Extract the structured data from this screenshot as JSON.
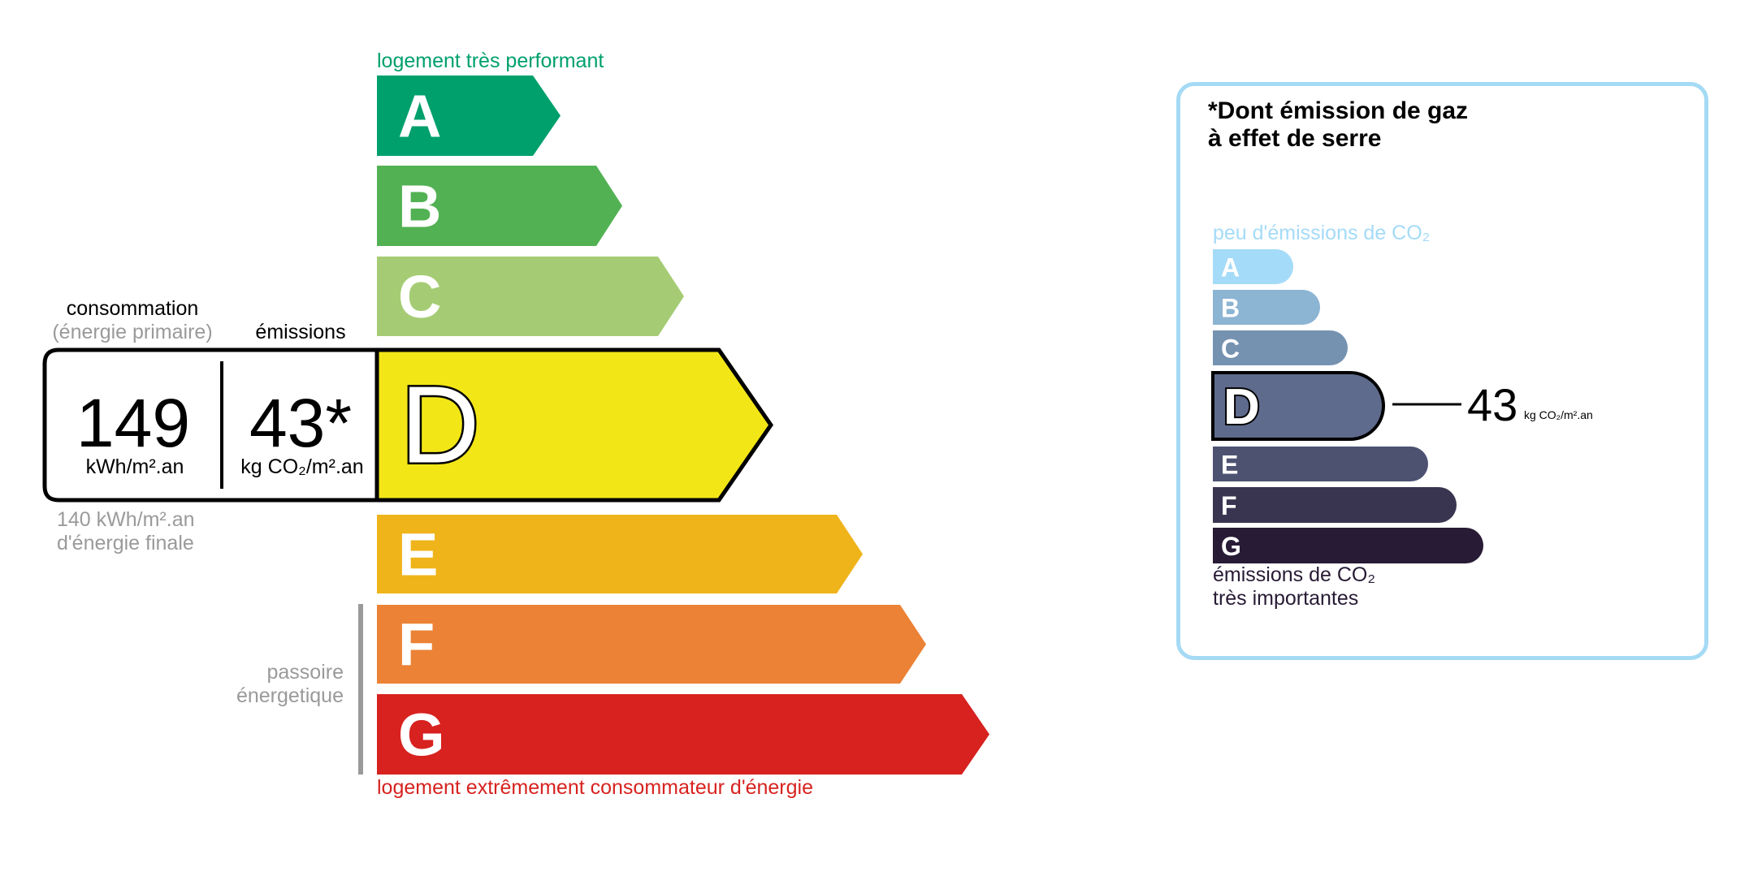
{
  "energy": {
    "top_label": "logement très performant",
    "bottom_label": "logement extrêmement consommateur d'énergie",
    "top_label_color": "#00a06d",
    "bottom_label_color": "#d7221f",
    "classes": [
      {
        "letter": "A",
        "color": "#00a06d"
      },
      {
        "letter": "B",
        "color": "#52b153"
      },
      {
        "letter": "C",
        "color": "#a5cc74"
      },
      {
        "letter": "D",
        "color": "#f2e617"
      },
      {
        "letter": "E",
        "color": "#efb41a"
      },
      {
        "letter": "F",
        "color": "#eb8235"
      },
      {
        "letter": "G",
        "color": "#d7221f"
      }
    ],
    "selected_class": "D",
    "consumption_label": "consommation",
    "consumption_sublabel": "(énergie primaire)",
    "emissions_label": "émissions",
    "consumption_value": "149",
    "consumption_unit": "kWh/m².an",
    "emissions_value": "43*",
    "emissions_unit": "kg CO₂/m².an",
    "final_energy_line1": "140 kWh/m².an",
    "final_energy_line2": "d'énergie finale",
    "passoire_line1": "passoire",
    "passoire_line2": "énergetique"
  },
  "ges": {
    "title_line1": "*Dont émission de gaz",
    "title_line2": "à effet de serre",
    "top_label": "peu d'émissions de CO₂",
    "bottom_label_line1": "émissions de CO₂",
    "bottom_label_line2": "très importantes",
    "classes": [
      {
        "letter": "A",
        "color": "#a4dbf8"
      },
      {
        "letter": "B",
        "color": "#8cb4d3"
      },
      {
        "letter": "C",
        "color": "#7692b1"
      },
      {
        "letter": "D",
        "color": "#5e6b8d"
      },
      {
        "letter": "E",
        "color": "#4d5271"
      },
      {
        "letter": "F",
        "color": "#393551"
      },
      {
        "letter": "G",
        "color": "#281b35"
      }
    ],
    "selected_class": "D",
    "value": "43",
    "unit": "kg CO₂/m².an",
    "border_color": "#a5daf5"
  }
}
